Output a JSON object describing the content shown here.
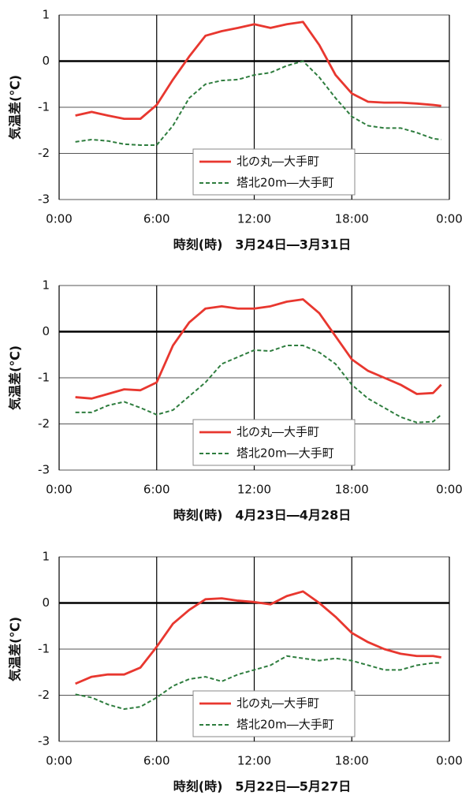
{
  "chart_data": [
    {
      "type": "line",
      "xlabel": "時刻(時)　3月24日―3月31日",
      "ylabel": "気温差(℃)",
      "x": [
        1,
        2,
        3,
        4,
        5,
        6,
        7,
        8,
        9,
        10,
        11,
        12,
        13,
        14,
        15,
        16,
        17,
        18,
        19,
        20,
        21,
        22,
        23,
        23.5
      ],
      "xlim": [
        0,
        24
      ],
      "xticks": [
        {
          "value": 0,
          "label": "0:00"
        },
        {
          "value": 6,
          "label": "6:00"
        },
        {
          "value": 12,
          "label": "12:00"
        },
        {
          "value": 18,
          "label": "18:00"
        },
        {
          "value": 24,
          "label": "0:00"
        }
      ],
      "ylim": [
        -3,
        1
      ],
      "yticks": [
        -3,
        -2,
        -1,
        0,
        1
      ],
      "grid": true,
      "legend": "lower center",
      "series": [
        {
          "name": "北の丸―大手町",
          "color": "#e8372f",
          "dashed": false,
          "values": [
            -1.18,
            -1.1,
            -1.18,
            -1.25,
            -1.25,
            -0.95,
            -0.4,
            0.1,
            0.55,
            0.65,
            0.72,
            0.8,
            0.72,
            0.8,
            0.85,
            0.35,
            -0.3,
            -0.7,
            -0.88,
            -0.9,
            -0.9,
            -0.92,
            -0.95,
            -0.97
          ]
        },
        {
          "name": "塔北20m―大手町",
          "color": "#2e7d3e",
          "dashed": true,
          "values": [
            -1.75,
            -1.7,
            -1.73,
            -1.8,
            -1.82,
            -1.82,
            -1.4,
            -0.8,
            -0.5,
            -0.42,
            -0.4,
            -0.3,
            -0.25,
            -0.1,
            0.0,
            -0.35,
            -0.8,
            -1.2,
            -1.4,
            -1.45,
            -1.45,
            -1.55,
            -1.68,
            -1.7
          ]
        }
      ]
    },
    {
      "type": "line",
      "xlabel": "時刻(時)　4月23日―4月28日",
      "ylabel": "気温差(℃)",
      "x": [
        1,
        2,
        3,
        4,
        5,
        6,
        7,
        8,
        9,
        10,
        11,
        12,
        13,
        14,
        15,
        16,
        17,
        18,
        19,
        20,
        21,
        22,
        23,
        23.5
      ],
      "xlim": [
        0,
        24
      ],
      "xticks": [
        {
          "value": 0,
          "label": "0:00"
        },
        {
          "value": 6,
          "label": "6:00"
        },
        {
          "value": 12,
          "label": "12:00"
        },
        {
          "value": 18,
          "label": "18:00"
        },
        {
          "value": 24,
          "label": "0:00"
        }
      ],
      "ylim": [
        -3,
        1
      ],
      "yticks": [
        -3,
        -2,
        -1,
        0,
        1
      ],
      "grid": true,
      "legend": "lower center",
      "series": [
        {
          "name": "北の丸―大手町",
          "color": "#e8372f",
          "dashed": false,
          "values": [
            -1.42,
            -1.45,
            -1.35,
            -1.25,
            -1.27,
            -1.1,
            -0.3,
            0.2,
            0.5,
            0.55,
            0.5,
            0.5,
            0.55,
            0.65,
            0.7,
            0.4,
            -0.1,
            -0.6,
            -0.85,
            -1.0,
            -1.15,
            -1.35,
            -1.33,
            -1.15
          ]
        },
        {
          "name": "塔北20m―大手町",
          "color": "#2e7d3e",
          "dashed": true,
          "values": [
            -1.75,
            -1.75,
            -1.6,
            -1.52,
            -1.65,
            -1.8,
            -1.7,
            -1.4,
            -1.1,
            -0.7,
            -0.55,
            -0.4,
            -0.42,
            -0.3,
            -0.3,
            -0.45,
            -0.7,
            -1.15,
            -1.45,
            -1.65,
            -1.85,
            -1.97,
            -1.95,
            -1.8
          ]
        }
      ]
    },
    {
      "type": "line",
      "xlabel": "時刻(時)　5月22日―5月27日",
      "ylabel": "気温差(℃)",
      "x": [
        1,
        2,
        3,
        4,
        5,
        6,
        7,
        8,
        9,
        10,
        11,
        12,
        13,
        14,
        15,
        16,
        17,
        18,
        19,
        20,
        21,
        22,
        23,
        23.5
      ],
      "xlim": [
        0,
        24
      ],
      "xticks": [
        {
          "value": 0,
          "label": "0:00"
        },
        {
          "value": 6,
          "label": "6:00"
        },
        {
          "value": 12,
          "label": "12:00"
        },
        {
          "value": 18,
          "label": "18:00"
        },
        {
          "value": 24,
          "label": "0:00"
        }
      ],
      "ylim": [
        -3,
        1
      ],
      "yticks": [
        -3,
        -2,
        -1,
        0,
        1
      ],
      "grid": true,
      "legend": "lower center",
      "series": [
        {
          "name": "北の丸―大手町",
          "color": "#e8372f",
          "dashed": false,
          "values": [
            -1.75,
            -1.6,
            -1.55,
            -1.55,
            -1.4,
            -0.95,
            -0.45,
            -0.15,
            0.08,
            0.1,
            0.05,
            0.02,
            -0.03,
            0.15,
            0.25,
            0.0,
            -0.3,
            -0.65,
            -0.85,
            -1.0,
            -1.1,
            -1.15,
            -1.15,
            -1.18
          ]
        },
        {
          "name": "塔北20m―大手町",
          "color": "#2e7d3e",
          "dashed": true,
          "values": [
            -1.98,
            -2.05,
            -2.2,
            -2.3,
            -2.25,
            -2.05,
            -1.8,
            -1.65,
            -1.6,
            -1.7,
            -1.55,
            -1.45,
            -1.35,
            -1.15,
            -1.2,
            -1.25,
            -1.2,
            -1.25,
            -1.35,
            -1.45,
            -1.45,
            -1.35,
            -1.3,
            -1.3
          ]
        }
      ]
    }
  ]
}
